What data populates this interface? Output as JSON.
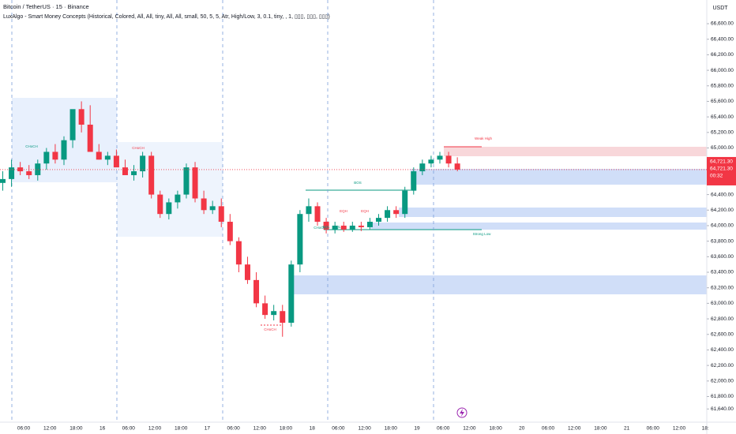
{
  "chart_data": {
    "type": "candlestick",
    "title": "Bitcoin / TetherUS · 15 · Binance",
    "subtitle": "LuxAlgo - Smart Money Concepts (Historical, Colored, All, All, tiny, All, All, small, 50, 5, 5, Atr, High/Low, 3, 0.1, tiny, , 1, ▯▯▯, ▯▯▯, ▯▯▯)",
    "currency": "USDT",
    "up_color": "#089981",
    "down_color": "#f23645",
    "grid": false,
    "ylim": [
      61470,
      66905
    ],
    "yticks": [
      {
        "value": 66600,
        "label": "66,600.00"
      },
      {
        "value": 66400,
        "label": "66,400.00"
      },
      {
        "value": 66200,
        "label": "66,200.00"
      },
      {
        "value": 66000,
        "label": "66,000.00"
      },
      {
        "value": 65800,
        "label": "65,800.00"
      },
      {
        "value": 65600,
        "label": "65,600.00"
      },
      {
        "value": 65400,
        "label": "65,400.00"
      },
      {
        "value": 65200,
        "label": "65,200.00"
      },
      {
        "value": 65000,
        "label": "65,000.00"
      },
      {
        "value": 64400,
        "label": "64,400.00"
      },
      {
        "value": 64200,
        "label": "64,200.00"
      },
      {
        "value": 64000,
        "label": "64,000.00"
      },
      {
        "value": 63800,
        "label": "63,800.00"
      },
      {
        "value": 63600,
        "label": "63,600.00"
      },
      {
        "value": 63400,
        "label": "63,400.00"
      },
      {
        "value": 63200,
        "label": "63,200.00"
      },
      {
        "value": 63000,
        "label": "63,000.00"
      },
      {
        "value": 62800,
        "label": "62,800.00"
      },
      {
        "value": 62600,
        "label": "62,600.00"
      },
      {
        "value": 62400,
        "label": "62,400.00"
      },
      {
        "value": 62200,
        "label": "62,200.00"
      },
      {
        "value": 62000,
        "label": "62,000.00"
      },
      {
        "value": 61800,
        "label": "61,800.00"
      },
      {
        "value": 61640,
        "label": "61,640.00"
      }
    ],
    "time_labels": [
      "06:00",
      "12:00",
      "18:00",
      "16",
      "06:00",
      "12:00",
      "18:00",
      "17",
      "06:00",
      "12:00",
      "18:00",
      "18",
      "06:00",
      "12:00",
      "18:00",
      "19",
      "06:00",
      "12:00",
      "18:00",
      "20",
      "06:00",
      "12:00",
      "18:00",
      "21",
      "06:00",
      "12:00",
      "18:"
    ],
    "last_price": {
      "value": 64721.3,
      "label": "64,721.30"
    },
    "countdown": "00:32",
    "candles": {
      "open": [
        64550,
        64600,
        64750,
        64700,
        64650,
        64800,
        64950,
        64850,
        65100,
        65500,
        65300,
        64950,
        64850,
        64900,
        64750,
        64650,
        64700,
        64900,
        64400,
        64150,
        64300,
        64400,
        64750,
        64350,
        64200,
        64250,
        64050,
        63800,
        63500,
        63300,
        63000,
        62850,
        62900,
        62750,
        63500,
        64150,
        64250,
        64050,
        63950,
        64000,
        63950,
        64000,
        63980,
        64050,
        64100,
        64200,
        64150,
        64450,
        64700,
        64800,
        64850,
        64900,
        64800
      ],
      "high": [
        64700,
        64850,
        64820,
        64780,
        64850,
        65000,
        65050,
        65150,
        65300,
        65600,
        65550,
        65050,
        64950,
        64980,
        64850,
        64780,
        64950,
        64950,
        64450,
        64350,
        64450,
        64800,
        64820,
        64450,
        64320,
        64350,
        64150,
        63850,
        63600,
        63400,
        63100,
        62980,
        62980,
        63550,
        64200,
        64350,
        64300,
        64100,
        64050,
        64050,
        64050,
        64050,
        64100,
        64150,
        64250,
        64250,
        64500,
        64750,
        64850,
        64900,
        64950,
        64950,
        64880
      ],
      "low": [
        64450,
        64500,
        64650,
        64600,
        64580,
        64720,
        64800,
        64780,
        65000,
        65200,
        65200,
        64850,
        64780,
        64800,
        64680,
        64580,
        64620,
        64350,
        64100,
        64080,
        64220,
        64350,
        64300,
        64150,
        64150,
        63980,
        63750,
        63400,
        63250,
        62950,
        62800,
        62780,
        62570,
        62700,
        63400,
        64050,
        64000,
        63900,
        63900,
        63920,
        63920,
        63930,
        63950,
        64000,
        64050,
        64100,
        64100,
        64400,
        64650,
        64750,
        64800,
        64750,
        64700
      ],
      "close": [
        64600,
        64750,
        64700,
        64650,
        64800,
        64950,
        64850,
        65100,
        65500,
        65300,
        64950,
        64850,
        64900,
        64750,
        64650,
        64700,
        64900,
        64400,
        64150,
        64300,
        64400,
        64750,
        64350,
        64200,
        64250,
        64050,
        63800,
        63500,
        63300,
        63000,
        62850,
        62900,
        62750,
        63500,
        64150,
        64250,
        64050,
        63950,
        64000,
        63950,
        64000,
        63980,
        64050,
        64100,
        64200,
        64150,
        64450,
        64700,
        64800,
        64850,
        64900,
        64800,
        64721.3
      ]
    },
    "annotations": [
      "BOS",
      "Weak High",
      "Strong Low",
      "CHoCH",
      "CHoCH",
      "CHoCH",
      "CHoCH",
      "EQH",
      "EQH",
      "EQL",
      "EQL"
    ]
  }
}
